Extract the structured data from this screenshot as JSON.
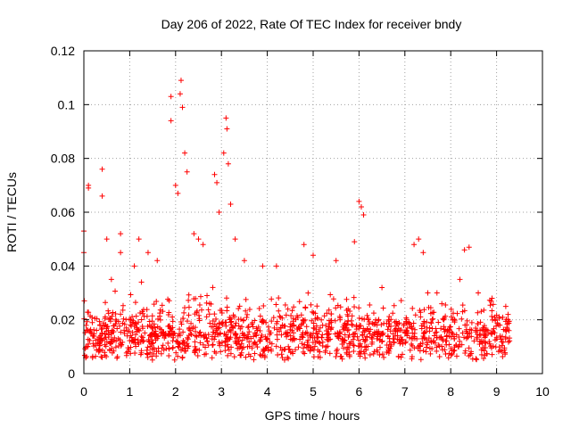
{
  "chart_data": {
    "type": "scatter",
    "title": "Day 206 of 2022, Rate Of TEC Index for receiver bndy",
    "xlabel": "GPS time / hours",
    "ylabel": "ROTI / TECUs",
    "xlim": [
      0,
      10
    ],
    "ylim": [
      0,
      0.12
    ],
    "x_ticks": [
      0,
      1,
      2,
      3,
      4,
      5,
      6,
      7,
      8,
      9,
      10
    ],
    "y_ticks": [
      0,
      0.02,
      0.04,
      0.06,
      0.08,
      0.1,
      0.12
    ],
    "x_tick_labels": [
      "0",
      "1",
      "2",
      "3",
      "4",
      "5",
      "6",
      "7",
      "8",
      "9",
      "10"
    ],
    "y_tick_labels": [
      "0",
      "0.02",
      "0.04",
      "0.06",
      "0.08",
      "0.1",
      "0.12"
    ],
    "grid": true,
    "marker": "+",
    "marker_color": "#ff0000",
    "series": [
      {
        "name": "ROTI",
        "x": [
          0.0,
          0.0,
          0.1,
          0.1,
          0.4,
          0.4,
          0.5,
          0.6,
          0.8,
          0.8,
          1.1,
          1.2,
          1.4,
          1.6,
          1.9,
          1.9,
          2.0,
          2.05,
          2.1,
          2.12,
          2.15,
          2.2,
          2.25,
          2.4,
          2.5,
          2.6,
          2.85,
          2.9,
          2.95,
          3.05,
          3.1,
          3.12,
          3.15,
          3.2,
          3.3,
          3.5,
          3.9,
          4.2,
          4.8,
          5.0,
          5.5,
          5.9,
          6.0,
          6.05,
          6.1,
          6.5,
          7.2,
          7.3,
          7.4,
          7.5,
          7.7,
          8.2,
          8.3,
          8.4,
          8.6,
          8.9,
          9.2,
          9.25
        ],
        "y": [
          0.053,
          0.045,
          0.07,
          0.069,
          0.076,
          0.066,
          0.05,
          0.035,
          0.052,
          0.045,
          0.04,
          0.05,
          0.045,
          0.042,
          0.094,
          0.103,
          0.07,
          0.067,
          0.104,
          0.109,
          0.099,
          0.082,
          0.075,
          0.052,
          0.05,
          0.048,
          0.074,
          0.071,
          0.06,
          0.082,
          0.095,
          0.091,
          0.078,
          0.063,
          0.05,
          0.042,
          0.04,
          0.04,
          0.048,
          0.044,
          0.042,
          0.049,
          0.064,
          0.062,
          0.059,
          0.032,
          0.048,
          0.05,
          0.045,
          0.03,
          0.03,
          0.035,
          0.046,
          0.047,
          0.03,
          0.028,
          0.025,
          0.022
        ]
      }
    ],
    "dense_band": {
      "x_range": [
        0,
        9.3
      ],
      "typical_y": [
        0.005,
        0.025
      ]
    }
  }
}
